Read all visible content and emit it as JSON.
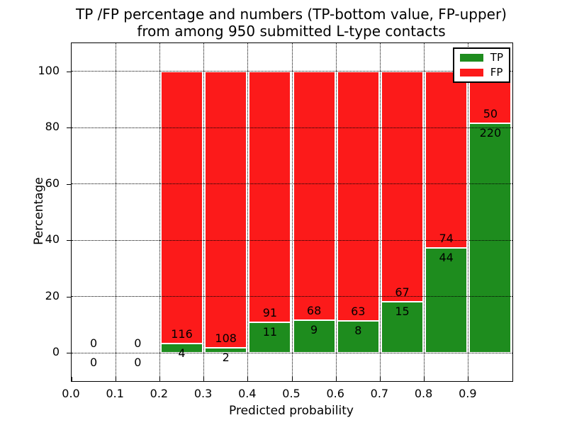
{
  "chart_data": {
    "type": "bar",
    "stacked": true,
    "title_line1": "TP /FP percentage and numbers (TP-bottom value, FP-upper)",
    "title_line2": "from among 950 submitted L-type contacts",
    "total_submitted": 950,
    "xlabel": "Predicted probability",
    "ylabel": "Percentage",
    "xlim": [
      0.0,
      1.0
    ],
    "ylim": [
      -10,
      110
    ],
    "bin_width": 0.1,
    "x_ticks": [
      0.0,
      0.1,
      0.2,
      0.3,
      0.4,
      0.5,
      0.6,
      0.7,
      0.8,
      0.9
    ],
    "x_tick_labels": [
      "0.0",
      "0.1",
      "0.2",
      "0.3",
      "0.4",
      "0.5",
      "0.6",
      "0.7",
      "0.8",
      "0.9"
    ],
    "y_ticks": [
      0,
      20,
      40,
      60,
      80,
      100
    ],
    "y_tick_labels": [
      "0",
      "20",
      "40",
      "60",
      "80",
      "100"
    ],
    "grid": {
      "on": true,
      "style": "dotted",
      "color": "#000000"
    },
    "legend": {
      "position": "upper right",
      "entries": [
        {
          "label": "TP",
          "color": "#1e8c1e"
        },
        {
          "label": "FP",
          "color": "#fc1a1a"
        }
      ]
    },
    "colors": {
      "tp": "#1e8c1e",
      "fp": "#fc1a1a",
      "bar_edge": "#ffffff",
      "axes": "#000000",
      "background": "#ffffff",
      "text": "#000000"
    },
    "bins": [
      {
        "x_start": 0.0,
        "tp": 0,
        "fp": 0
      },
      {
        "x_start": 0.1,
        "tp": 0,
        "fp": 0
      },
      {
        "x_start": 0.2,
        "tp": 4,
        "fp": 116
      },
      {
        "x_start": 0.3,
        "tp": 2,
        "fp": 108
      },
      {
        "x_start": 0.4,
        "tp": 11,
        "fp": 91
      },
      {
        "x_start": 0.5,
        "tp": 9,
        "fp": 68
      },
      {
        "x_start": 0.6,
        "tp": 8,
        "fp": 63
      },
      {
        "x_start": 0.7,
        "tp": 15,
        "fp": 67
      },
      {
        "x_start": 0.8,
        "tp": 44,
        "fp": 74
      },
      {
        "x_start": 0.9,
        "tp": 220,
        "fp": 50
      }
    ]
  }
}
